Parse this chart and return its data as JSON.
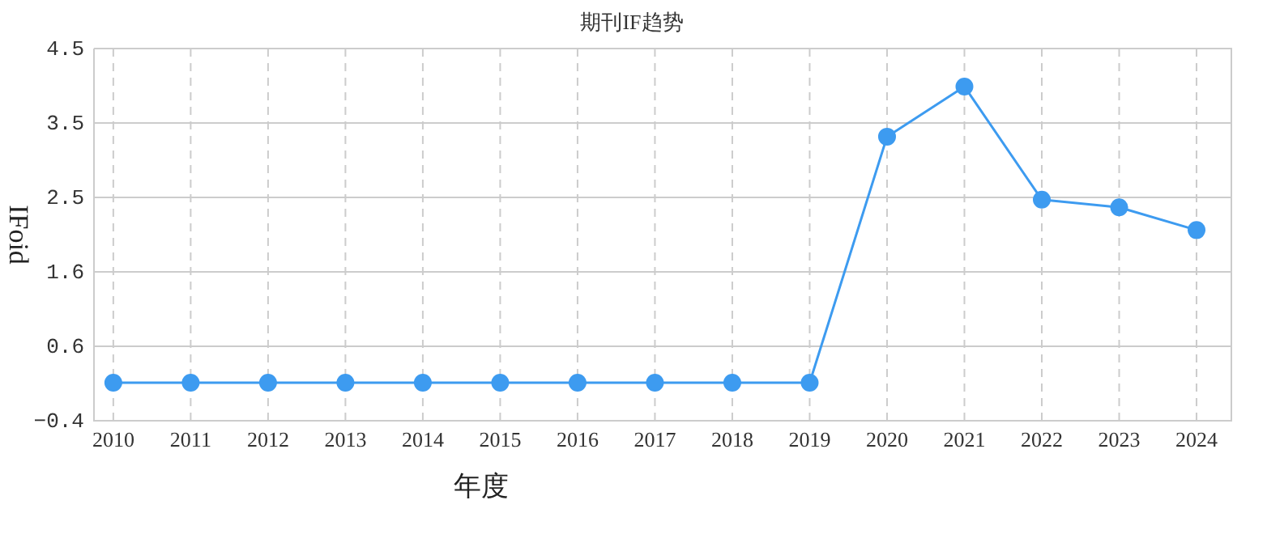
{
  "chart_data": {
    "type": "line",
    "title": "期刊IF趋势",
    "xlabel": "年度",
    "ylabel": "IFoid",
    "categories": [
      "2010",
      "2011",
      "2012",
      "2013",
      "2014",
      "2015",
      "2016",
      "2017",
      "2018",
      "2019",
      "2020",
      "2021",
      "2022",
      "2023",
      "2024"
    ],
    "series": [
      {
        "color": "#3d9bf0",
        "values": [
          0.1,
          0.1,
          0.1,
          0.1,
          0.1,
          0.1,
          0.1,
          0.1,
          0.1,
          0.1,
          3.34,
          4.0,
          2.51,
          2.41,
          2.11
        ]
      }
    ],
    "ylim": [
      -0.4,
      4.5
    ],
    "yticks": [
      -0.4,
      {
        "value": 0.58,
        "label": "0.6"
      },
      {
        "value": 1.56,
        "label": "1.6"
      },
      {
        "value": 2.54,
        "label": "2.5"
      },
      {
        "value": 3.52,
        "label": "3.5"
      },
      4.5
    ],
    "grid": true,
    "marker": "circle"
  }
}
